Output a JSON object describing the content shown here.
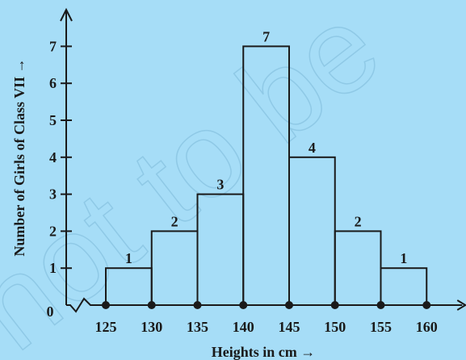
{
  "chart_data": {
    "type": "bar",
    "title": "",
    "xlabel": "Heights in cm  →",
    "ylabel": "Number of Girls of Class VII →",
    "origin_label": "0",
    "bin_edges": [
      125,
      130,
      135,
      140,
      145,
      150,
      155,
      160
    ],
    "x_tick_labels": [
      "125",
      "130",
      "135",
      "140",
      "145",
      "150",
      "155",
      "160"
    ],
    "values": [
      1,
      2,
      3,
      7,
      4,
      2,
      1
    ],
    "value_labels": [
      "1",
      "2",
      "3",
      "7",
      "4",
      "2",
      "1"
    ],
    "y_tick_labels": [
      "1",
      "2",
      "3",
      "4",
      "5",
      "6",
      "7"
    ],
    "ylim": [
      0,
      7
    ],
    "grid": false,
    "x_axis_break": true
  },
  "watermark": "not to be",
  "colors": {
    "background": "#a6ddf7",
    "ink": "#1a1a1a"
  }
}
